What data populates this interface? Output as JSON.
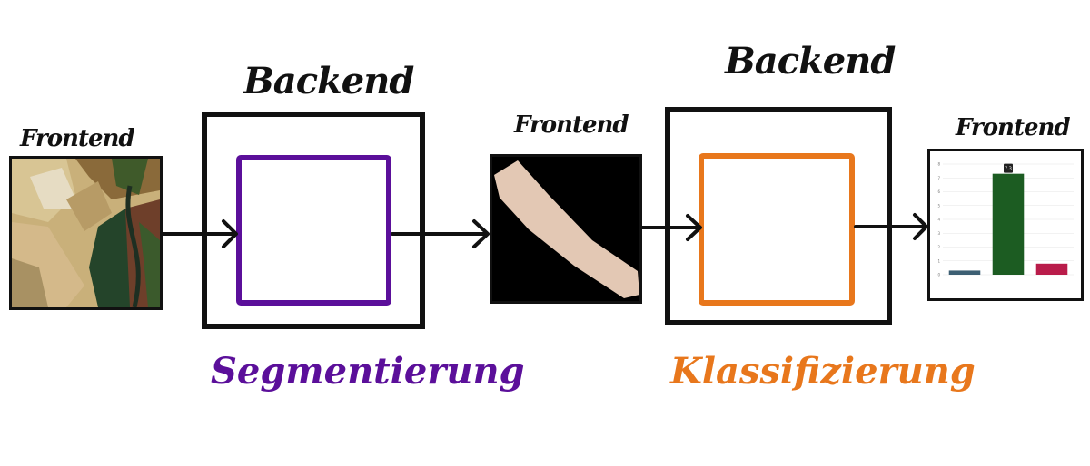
{
  "labels": {
    "frontend_1": "Frontend",
    "frontend_2": "Frontend",
    "frontend_3": "Frontend",
    "backend_1": "Backend",
    "backend_2": "Backend",
    "segmentation": "Segmentierung",
    "classification": "Klassifizierung"
  },
  "colors": {
    "segmentation": "#5b0f9a",
    "classification": "#e8771c",
    "outline": "#111111"
  },
  "chart_data": {
    "type": "bar",
    "categories": [
      "",
      "",
      ""
    ],
    "values": [
      0.3,
      7.3,
      0.8
    ],
    "colors": [
      "#3d5f73",
      "#1c5c22",
      "#b91c4a"
    ],
    "ylim": [
      0,
      8
    ],
    "yticks": [
      "0",
      "1",
      "2",
      "3",
      "4",
      "5",
      "6",
      "7",
      "8"
    ],
    "data_label": "7.3",
    "grid": true
  }
}
